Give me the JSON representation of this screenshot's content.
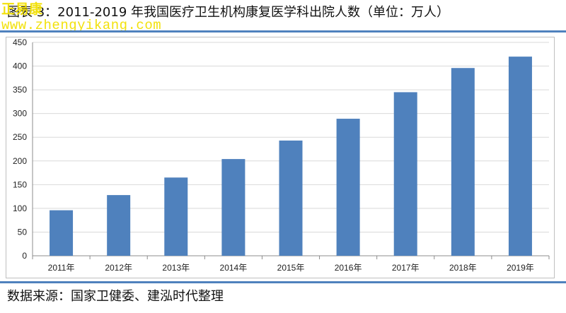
{
  "header": {
    "title": "图表 3：2011-2019 年我国医疗卫生机构康复医学科出院人数（单位：万人）"
  },
  "watermark": {
    "brand": "正易康",
    "url": "www.zhengyikang.com"
  },
  "footer": {
    "source": "数据来源：国家卫健委、建泓时代整理"
  },
  "colors": {
    "bar": "#4f81bd",
    "rule": "#4f81bd",
    "grid": "#d9d9d9"
  },
  "chart_data": {
    "type": "bar",
    "title": "",
    "xlabel": "",
    "ylabel": "",
    "categories": [
      "2011年",
      "2012年",
      "2013年",
      "2014年",
      "2015年",
      "2016年",
      "2017年",
      "2018年",
      "2019年"
    ],
    "values": [
      96,
      128,
      165,
      204,
      243,
      289,
      345,
      396,
      420
    ],
    "ylim": [
      0,
      450
    ],
    "yticks": [
      0,
      50,
      100,
      150,
      200,
      250,
      300,
      350,
      400,
      450
    ],
    "grid": true,
    "legend": "none"
  }
}
